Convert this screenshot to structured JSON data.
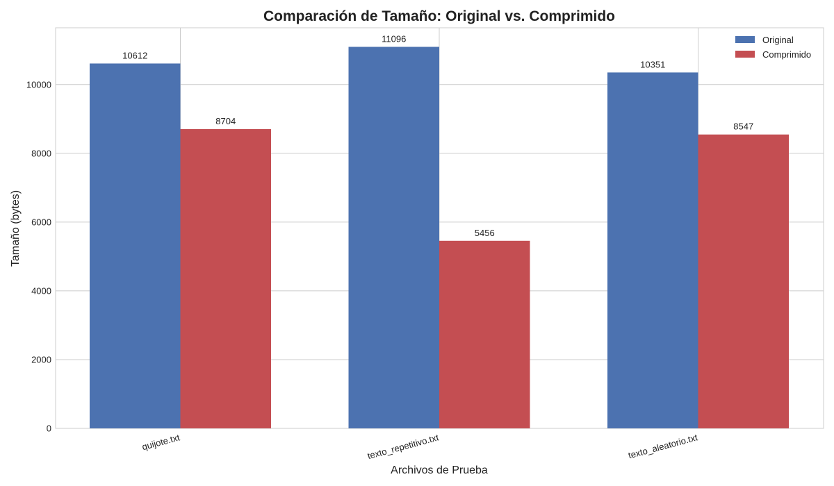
{
  "chart_data": {
    "type": "bar",
    "title": "Comparación de Tamaño: Original vs. Comprimido",
    "xlabel": "Archivos de Prueba",
    "ylabel": "Tamaño (bytes)",
    "categories": [
      "quijote.txt",
      "texto_repetitivo.txt",
      "texto_aleatorio.txt"
    ],
    "series": [
      {
        "name": "Original",
        "values": [
          10612,
          11096,
          10351
        ],
        "color": "#4c72b0"
      },
      {
        "name": "Comprimido",
        "values": [
          8704,
          5456,
          8547
        ],
        "color": "#c44e52"
      }
    ],
    "ylim": [
      0,
      11651
    ],
    "yticks": [
      0,
      2000,
      4000,
      6000,
      8000,
      10000
    ],
    "grid": true,
    "legend": "top-right"
  }
}
